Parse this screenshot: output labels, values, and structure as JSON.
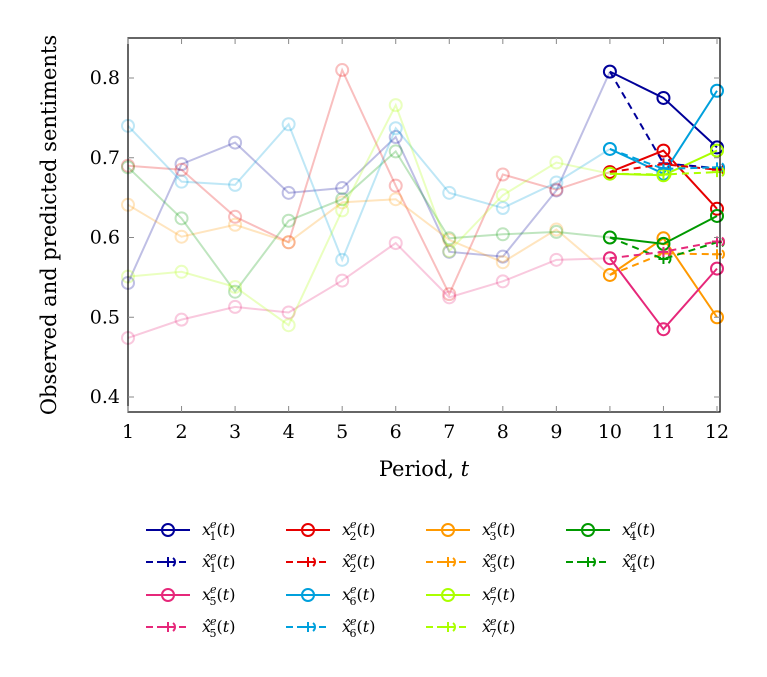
{
  "chart_data": {
    "type": "line",
    "title": "",
    "xlabel": "Period, ",
    "xlabel_var": "t",
    "ylabel": "Observed and predicted sentiments",
    "xlim": [
      1,
      12
    ],
    "ylim": [
      0.38,
      0.85
    ],
    "x_ticks": [
      1,
      2,
      3,
      4,
      5,
      6,
      7,
      8,
      9,
      10,
      11,
      12
    ],
    "y_ticks": [
      "0.4",
      "0.5",
      "0.6",
      "0.7",
      "0.8"
    ],
    "grid": false,
    "legend_placement": "bottom",
    "history_opacity": 0.25,
    "x": [
      1,
      2,
      3,
      4,
      5,
      6,
      7,
      8,
      9,
      10,
      11,
      12
    ],
    "series": [
      {
        "name": "x_1^e(t)",
        "idx": "1",
        "hat": false,
        "color": "#000099",
        "values": [
          0.543,
          0.692,
          0.719,
          0.656,
          0.662,
          0.726,
          0.582,
          0.576,
          0.659,
          0.808,
          0.775,
          0.713
        ]
      },
      {
        "name": "x_2^e(t)",
        "idx": "2",
        "hat": false,
        "color": "#e60000",
        "values": [
          0.69,
          0.685,
          0.626,
          0.594,
          0.81,
          0.665,
          0.529,
          0.679,
          0.66,
          0.682,
          0.709,
          0.636
        ]
      },
      {
        "name": "x_3^e(t)",
        "idx": "3",
        "hat": false,
        "color": "#ff9900",
        "values": [
          0.641,
          0.601,
          0.616,
          0.594,
          0.644,
          0.648,
          0.597,
          0.569,
          0.61,
          0.553,
          0.599,
          0.5
        ]
      },
      {
        "name": "x_4^e(t)",
        "idx": "4",
        "hat": false,
        "color": "#009900",
        "values": [
          0.688,
          0.624,
          0.532,
          0.621,
          0.648,
          0.708,
          0.599,
          0.604,
          0.607,
          0.6,
          0.592,
          0.627
        ]
      },
      {
        "name": "x_5^e(t)",
        "idx": "5",
        "hat": false,
        "color": "#e6287a",
        "values": [
          0.474,
          0.497,
          0.513,
          0.506,
          0.546,
          0.593,
          0.525,
          0.545,
          0.572,
          0.574,
          0.485,
          0.561
        ]
      },
      {
        "name": "x_6^e(t)",
        "idx": "6",
        "hat": false,
        "color": "#00a0dc",
        "values": [
          0.74,
          0.67,
          0.666,
          0.742,
          0.572,
          0.737,
          0.656,
          0.637,
          0.669,
          0.711,
          0.68,
          0.784
        ]
      },
      {
        "name": "x_7^e(t)",
        "idx": "7",
        "hat": false,
        "color": "#aaff00",
        "values": [
          0.551,
          0.557,
          0.538,
          0.49,
          0.634,
          0.766,
          0.583,
          0.653,
          0.694,
          0.68,
          0.678,
          0.709
        ]
      }
    ],
    "predictions": {
      "x": [
        10,
        11,
        12
      ],
      "series": [
        {
          "name": "̂x_1^e(t)",
          "idx": "1",
          "hat": true,
          "color": "#000099",
          "values": [
            0.808,
            0.693,
            0.687
          ]
        },
        {
          "name": "̂x_2^e(t)",
          "idx": "2",
          "hat": true,
          "color": "#e60000",
          "values": [
            0.682,
            0.692,
            0.685
          ]
        },
        {
          "name": "̂x_3^e(t)",
          "idx": "3",
          "hat": true,
          "color": "#ff9900",
          "values": [
            0.553,
            0.58,
            0.579
          ]
        },
        {
          "name": "̂x_4^e(t)",
          "idx": "4",
          "hat": true,
          "color": "#009900",
          "values": [
            0.6,
            0.573,
            0.594
          ]
        },
        {
          "name": "̂x_5^e(t)",
          "idx": "5",
          "hat": true,
          "color": "#e6287a",
          "values": [
            0.574,
            0.582,
            0.595
          ]
        },
        {
          "name": "̂x_6^e(t)",
          "idx": "6",
          "hat": true,
          "color": "#00a0dc",
          "values": [
            0.711,
            0.686,
            0.688
          ]
        },
        {
          "name": "̂x_7^e(t)",
          "idx": "7",
          "hat": true,
          "color": "#aaff00",
          "values": [
            0.68,
            0.679,
            0.682
          ]
        }
      ]
    }
  }
}
